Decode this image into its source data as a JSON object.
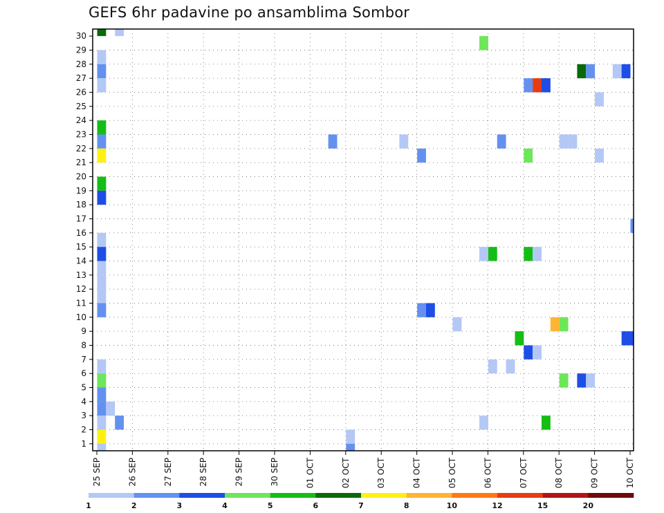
{
  "chart_data": {
    "type": "heatmap",
    "title": "GEFS 6hr padavine po ansamblima Sombor",
    "xlabel": "",
    "ylabel": "",
    "x_tick_labels": [
      "25 SEP",
      "26 SEP",
      "27 SEP",
      "28 SEP",
      "29 SEP",
      "30 SEP",
      "01 OCT",
      "02 OCT",
      "03 OCT",
      "04 OCT",
      "05 OCT",
      "06 OCT",
      "07 OCT",
      "08 OCT",
      "09 OCT",
      "10 OCT"
    ],
    "y_tick_labels": [
      "1",
      "2",
      "3",
      "4",
      "5",
      "6",
      "7",
      "8",
      "9",
      "10",
      "11",
      "12",
      "13",
      "14",
      "15",
      "16",
      "17",
      "18",
      "19",
      "20",
      "21",
      "22",
      "23",
      "24",
      "25",
      "26",
      "27",
      "28",
      "29",
      "30"
    ],
    "xlim_days": [
      0,
      15.2
    ],
    "ylim": [
      0,
      30
    ],
    "grid": true,
    "colorbar": {
      "placement": "bottom",
      "labels": [
        "1",
        "2",
        "3",
        "4",
        "5",
        "6",
        "7",
        "8",
        "10",
        "12",
        "15",
        "20"
      ],
      "colors": [
        "#b4c8f5",
        "#6491f0",
        "#1e4ee6",
        "#6ee65a",
        "#14be14",
        "#0a690a",
        "#fff014",
        "#ffb432",
        "#ff7814",
        "#e63c14",
        "#b41414",
        "#6e0a0a"
      ]
    },
    "cells": [
      {
        "day": 0.0,
        "member": 30,
        "color": "#0a690a"
      },
      {
        "day": 0.5,
        "member": 30,
        "color": "#b4c8f5"
      },
      {
        "day": 0.0,
        "member": 28,
        "color": "#b4c8f5"
      },
      {
        "day": 0.0,
        "member": 27,
        "color": "#6491f0"
      },
      {
        "day": 0.0,
        "member": 26,
        "color": "#b4c8f5"
      },
      {
        "day": 0.0,
        "member": 23,
        "color": "#14be14"
      },
      {
        "day": 0.0,
        "member": 22,
        "color": "#6491f0"
      },
      {
        "day": 0.0,
        "member": 21,
        "color": "#fff014"
      },
      {
        "day": 0.0,
        "member": 19,
        "color": "#14be14"
      },
      {
        "day": 0.0,
        "member": 18,
        "color": "#1e4ee6"
      },
      {
        "day": 0.0,
        "member": 15,
        "color": "#b4c8f5"
      },
      {
        "day": 0.0,
        "member": 14,
        "color": "#1e4ee6"
      },
      {
        "day": 0.0,
        "member": 13,
        "color": "#b4c8f5"
      },
      {
        "day": 0.0,
        "member": 12,
        "color": "#b4c8f5"
      },
      {
        "day": 0.0,
        "member": 11,
        "color": "#b4c8f5"
      },
      {
        "day": 0.0,
        "member": 10,
        "color": "#6491f0"
      },
      {
        "day": 0.0,
        "member": 6,
        "color": "#b4c8f5"
      },
      {
        "day": 0.0,
        "member": 5,
        "color": "#6ee65a"
      },
      {
        "day": 0.0,
        "member": 4,
        "color": "#6491f0"
      },
      {
        "day": 0.0,
        "member": 3,
        "color": "#6491f0"
      },
      {
        "day": 0.25,
        "member": 3,
        "color": "#b4c8f5"
      },
      {
        "day": 0.0,
        "member": 2,
        "color": "#b4c8f5"
      },
      {
        "day": 0.5,
        "member": 2,
        "color": "#6491f0"
      },
      {
        "day": 0.0,
        "member": 1,
        "color": "#fff014"
      },
      {
        "day": 0.0,
        "member": 0,
        "color": "#b4c8f5"
      },
      {
        "day": 7.0,
        "member": 1,
        "color": "#b4c8f5"
      },
      {
        "day": 7.0,
        "member": 0,
        "color": "#6491f0"
      },
      {
        "day": 6.5,
        "member": 22,
        "color": "#6491f0"
      },
      {
        "day": 8.5,
        "member": 22,
        "color": "#b4c8f5"
      },
      {
        "day": 9.0,
        "member": 21,
        "color": "#6491f0"
      },
      {
        "day": 9.0,
        "member": 10,
        "color": "#6491f0"
      },
      {
        "day": 9.25,
        "member": 10,
        "color": "#1e4ee6"
      },
      {
        "day": 10.0,
        "member": 9,
        "color": "#b4c8f5"
      },
      {
        "day": 10.75,
        "member": 29,
        "color": "#6ee65a"
      },
      {
        "day": 10.75,
        "member": 14,
        "color": "#b4c8f5"
      },
      {
        "day": 11.0,
        "member": 14,
        "color": "#14be14"
      },
      {
        "day": 11.0,
        "member": 6,
        "color": "#b4c8f5"
      },
      {
        "day": 10.75,
        "member": 2,
        "color": "#b4c8f5"
      },
      {
        "day": 11.25,
        "member": 22,
        "color": "#6491f0"
      },
      {
        "day": 11.5,
        "member": 6,
        "color": "#b4c8f5"
      },
      {
        "day": 11.75,
        "member": 8,
        "color": "#14be14"
      },
      {
        "day": 12.0,
        "member": 26,
        "color": "#6491f0"
      },
      {
        "day": 12.25,
        "member": 26,
        "color": "#e63c14"
      },
      {
        "day": 12.5,
        "member": 26,
        "color": "#1e4ee6"
      },
      {
        "day": 12.0,
        "member": 21,
        "color": "#6ee65a"
      },
      {
        "day": 12.0,
        "member": 14,
        "color": "#14be14"
      },
      {
        "day": 12.25,
        "member": 14,
        "color": "#b4c8f5"
      },
      {
        "day": 12.0,
        "member": 7,
        "color": "#1e4ee6"
      },
      {
        "day": 12.25,
        "member": 7,
        "color": "#b4c8f5"
      },
      {
        "day": 12.5,
        "member": 2,
        "color": "#14be14"
      },
      {
        "day": 12.75,
        "member": 9,
        "color": "#ffb432"
      },
      {
        "day": 13.0,
        "member": 9,
        "color": "#6ee65a"
      },
      {
        "day": 13.0,
        "member": 5,
        "color": "#6ee65a"
      },
      {
        "day": 13.0,
        "member": 22,
        "color": "#b4c8f5"
      },
      {
        "day": 13.25,
        "member": 22,
        "color": "#b4c8f5"
      },
      {
        "day": 13.5,
        "member": 27,
        "color": "#0a690a"
      },
      {
        "day": 13.75,
        "member": 27,
        "color": "#6491f0"
      },
      {
        "day": 13.5,
        "member": 5,
        "color": "#1e4ee6"
      },
      {
        "day": 13.75,
        "member": 5,
        "color": "#b4c8f5"
      },
      {
        "day": 14.0,
        "member": 25,
        "color": "#b4c8f5"
      },
      {
        "day": 14.0,
        "member": 21,
        "color": "#b4c8f5"
      },
      {
        "day": 14.5,
        "member": 27,
        "color": "#b4c8f5"
      },
      {
        "day": 14.75,
        "member": 27,
        "color": "#1e4ee6"
      },
      {
        "day": 15.0,
        "member": 16,
        "color": "#6491f0"
      },
      {
        "day": 14.75,
        "member": 8,
        "color": "#1e4ee6"
      },
      {
        "day": 15.0,
        "member": 8,
        "color": "#1e4ee6"
      }
    ]
  }
}
